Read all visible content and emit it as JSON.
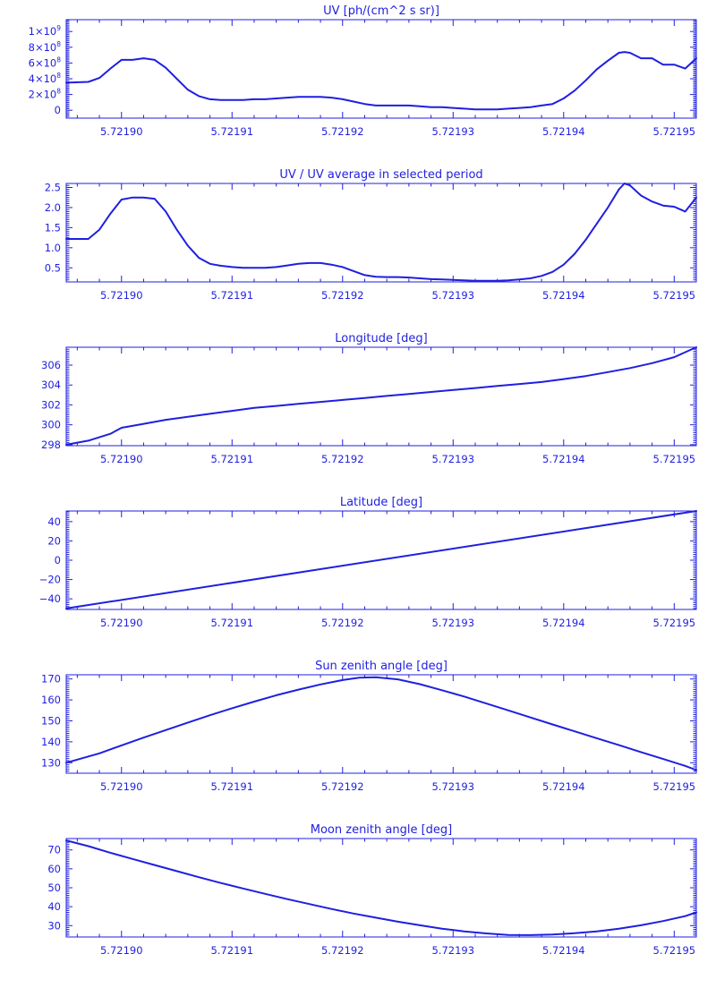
{
  "colors": {
    "ink": "#1f1fe0",
    "background": "#ffffff"
  },
  "chart_data": [
    {
      "type": "line",
      "title": "UV [ph/(cm^2 s sr)]",
      "xlabel": "",
      "ylabel": "",
      "xlim": [
        5.721895,
        5.721952
      ],
      "ylim": [
        -100000000,
        1150000000
      ],
      "xticks": [
        5.7219,
        5.72191,
        5.72192,
        5.72193,
        5.72194,
        5.72195
      ],
      "xtick_labels": [
        "5.72190",
        "5.72191",
        "5.72192",
        "5.72193",
        "5.72194",
        "5.72195"
      ],
      "yticks": [
        0,
        200000000,
        400000000,
        600000000,
        800000000,
        1000000000
      ],
      "ytick_labels": [
        {
          "base": "0",
          "exp": ""
        },
        {
          "base": "2×10",
          "exp": "8"
        },
        {
          "base": "4×10",
          "exp": "8"
        },
        {
          "base": "6×10",
          "exp": "8"
        },
        {
          "base": "8×10",
          "exp": "8"
        },
        {
          "base": "1×10",
          "exp": "9"
        }
      ],
      "grid": false,
      "x": [
        5.721895,
        5.721897,
        5.721898,
        5.721899,
        5.7219,
        5.721901,
        5.721902,
        5.721903,
        5.721904,
        5.721905,
        5.721906,
        5.721907,
        5.721908,
        5.721909,
        5.72191,
        5.721911,
        5.721912,
        5.721913,
        5.721914,
        5.721915,
        5.721916,
        5.721917,
        5.721918,
        5.721919,
        5.72192,
        5.721921,
        5.721922,
        5.721923,
        5.721924,
        5.721925,
        5.721926,
        5.721927,
        5.721928,
        5.721929,
        5.72193,
        5.721931,
        5.721932,
        5.721933,
        5.721934,
        5.721935,
        5.721936,
        5.721937,
        5.721938,
        5.721939,
        5.72194,
        5.721941,
        5.721942,
        5.721943,
        5.721944,
        5.721945,
        5.7219455,
        5.721946,
        5.721947,
        5.721948,
        5.721949,
        5.72195,
        5.721951,
        5.721952
      ],
      "y": [
        350000000,
        360000000,
        410000000,
        530000000,
        640000000,
        640000000,
        660000000,
        640000000,
        540000000,
        400000000,
        260000000,
        180000000,
        140000000,
        130000000,
        130000000,
        130000000,
        140000000,
        140000000,
        150000000,
        160000000,
        170000000,
        170000000,
        170000000,
        160000000,
        140000000,
        110000000,
        80000000,
        60000000,
        60000000,
        60000000,
        60000000,
        50000000,
        40000000,
        40000000,
        30000000,
        20000000,
        10000000,
        10000000,
        10000000,
        20000000,
        30000000,
        40000000,
        60000000,
        80000000,
        150000000,
        250000000,
        380000000,
        520000000,
        630000000,
        730000000,
        740000000,
        730000000,
        660000000,
        660000000,
        580000000,
        580000000,
        530000000,
        660000000
      ]
    },
    {
      "type": "line",
      "title": "UV / UV average in selected period",
      "xlabel": "",
      "ylabel": "",
      "xlim": [
        5.721895,
        5.721952
      ],
      "ylim": [
        0.15,
        2.6
      ],
      "xticks": [
        5.7219,
        5.72191,
        5.72192,
        5.72193,
        5.72194,
        5.72195
      ],
      "xtick_labels": [
        "5.72190",
        "5.72191",
        "5.72192",
        "5.72193",
        "5.72194",
        "5.72195"
      ],
      "yticks": [
        0.5,
        1.0,
        1.5,
        2.0,
        2.5
      ],
      "ytick_labels": [
        "0.5",
        "1.0",
        "1.5",
        "2.0",
        "2.5"
      ],
      "grid": false,
      "x": [
        5.721895,
        5.721897,
        5.721898,
        5.721899,
        5.7219,
        5.721901,
        5.721902,
        5.721903,
        5.721904,
        5.721905,
        5.721906,
        5.721907,
        5.721908,
        5.721909,
        5.72191,
        5.721911,
        5.721912,
        5.721913,
        5.721914,
        5.721915,
        5.721916,
        5.721917,
        5.721918,
        5.721919,
        5.72192,
        5.721921,
        5.721922,
        5.721923,
        5.721924,
        5.721925,
        5.721926,
        5.721927,
        5.721928,
        5.721929,
        5.72193,
        5.721931,
        5.721932,
        5.721933,
        5.721934,
        5.721935,
        5.721936,
        5.721937,
        5.721938,
        5.721939,
        5.72194,
        5.721941,
        5.721942,
        5.721943,
        5.721944,
        5.721945,
        5.7219455,
        5.721946,
        5.721947,
        5.721948,
        5.721949,
        5.72195,
        5.721951,
        5.721952
      ],
      "y": [
        1.22,
        1.22,
        1.45,
        1.85,
        2.2,
        2.25,
        2.25,
        2.22,
        1.9,
        1.45,
        1.05,
        0.75,
        0.6,
        0.55,
        0.52,
        0.5,
        0.5,
        0.5,
        0.52,
        0.56,
        0.6,
        0.62,
        0.62,
        0.58,
        0.52,
        0.42,
        0.32,
        0.28,
        0.27,
        0.27,
        0.26,
        0.24,
        0.22,
        0.21,
        0.2,
        0.19,
        0.18,
        0.18,
        0.18,
        0.19,
        0.21,
        0.24,
        0.3,
        0.4,
        0.58,
        0.85,
        1.2,
        1.6,
        2.0,
        2.45,
        2.6,
        2.55,
        2.3,
        2.15,
        2.05,
        2.02,
        1.9,
        2.25
      ]
    },
    {
      "type": "line",
      "title": "Longitude [deg]",
      "xlabel": "",
      "ylabel": "",
      "xlim": [
        5.721895,
        5.721952
      ],
      "ylim": [
        297.9,
        307.8
      ],
      "xticks": [
        5.7219,
        5.72191,
        5.72192,
        5.72193,
        5.72194,
        5.72195
      ],
      "xtick_labels": [
        "5.72190",
        "5.72191",
        "5.72192",
        "5.72193",
        "5.72194",
        "5.72195"
      ],
      "yticks": [
        298,
        300,
        302,
        304,
        306
      ],
      "ytick_labels": [
        "298",
        "300",
        "302",
        "304",
        "306"
      ],
      "grid": false,
      "x": [
        5.721895,
        5.721897,
        5.721899,
        5.7219,
        5.721902,
        5.721904,
        5.721906,
        5.721908,
        5.72191,
        5.721912,
        5.721914,
        5.721916,
        5.721918,
        5.72192,
        5.721922,
        5.721924,
        5.721926,
        5.721928,
        5.72193,
        5.721932,
        5.721934,
        5.721936,
        5.721938,
        5.72194,
        5.721942,
        5.721944,
        5.721946,
        5.721948,
        5.72195,
        5.721952
      ],
      "y": [
        298.0,
        298.4,
        299.1,
        299.7,
        300.1,
        300.5,
        300.8,
        301.1,
        301.4,
        301.7,
        301.9,
        302.1,
        302.3,
        302.5,
        302.7,
        302.9,
        303.1,
        303.3,
        303.5,
        303.7,
        303.9,
        304.1,
        304.3,
        304.6,
        304.9,
        305.3,
        305.7,
        306.2,
        306.8,
        307.8
      ]
    },
    {
      "type": "line",
      "title": "Latitude [deg]",
      "xlabel": "",
      "ylabel": "",
      "xlim": [
        5.721895,
        5.721952
      ],
      "ylim": [
        -51,
        51
      ],
      "xticks": [
        5.7219,
        5.72191,
        5.72192,
        5.72193,
        5.72194,
        5.72195
      ],
      "xtick_labels": [
        "5.72190",
        "5.72191",
        "5.72192",
        "5.72193",
        "5.72194",
        "5.72195"
      ],
      "yticks": [
        -40,
        -20,
        0,
        20,
        40
      ],
      "ytick_labels": [
        "−40",
        "−20",
        "0",
        "20",
        "40"
      ],
      "grid": false,
      "x": [
        5.721895,
        5.721952
      ],
      "y": [
        -50,
        51
      ]
    },
    {
      "type": "line",
      "title": "Sun zenith angle [deg]",
      "xlabel": "",
      "ylabel": "",
      "xlim": [
        5.721895,
        5.721952
      ],
      "ylim": [
        125,
        172
      ],
      "xticks": [
        5.7219,
        5.72191,
        5.72192,
        5.72193,
        5.72194,
        5.72195
      ],
      "xtick_labels": [
        "5.72190",
        "5.72191",
        "5.72192",
        "5.72193",
        "5.72194",
        "5.72195"
      ],
      "yticks": [
        130,
        140,
        150,
        160,
        170
      ],
      "ytick_labels": [
        "130",
        "140",
        "150",
        "160",
        "170"
      ],
      "grid": false,
      "x": [
        5.721895,
        5.721898,
        5.7219,
        5.721902,
        5.721904,
        5.721906,
        5.721908,
        5.72191,
        5.721912,
        5.721914,
        5.721916,
        5.721918,
        5.72192,
        5.7219215,
        5.721923,
        5.721925,
        5.721927,
        5.721929,
        5.721931,
        5.721933,
        5.721935,
        5.721937,
        5.721939,
        5.721941,
        5.721943,
        5.721945,
        5.721947,
        5.721949,
        5.721951,
        5.721952
      ],
      "y": [
        130,
        134.5,
        138.3,
        142,
        145.6,
        149.2,
        152.7,
        156,
        159.2,
        162.2,
        164.9,
        167.4,
        169.5,
        170.6,
        170.8,
        169.8,
        167.5,
        164.6,
        161.6,
        158.3,
        155,
        151.6,
        148.3,
        145,
        141.7,
        138.4,
        135.1,
        131.8,
        128.5,
        126.5
      ]
    },
    {
      "type": "line",
      "title": "Moon zenith angle [deg]",
      "xlabel": "",
      "ylabel": "",
      "xlim": [
        5.721895,
        5.721952
      ],
      "ylim": [
        24,
        76
      ],
      "xticks": [
        5.7219,
        5.72191,
        5.72192,
        5.72193,
        5.72194,
        5.72195
      ],
      "xtick_labels": [
        "5.72190",
        "5.72191",
        "5.72192",
        "5.72193",
        "5.72194",
        "5.72195"
      ],
      "yticks": [
        30,
        40,
        50,
        60,
        70
      ],
      "ytick_labels": [
        "30",
        "40",
        "50",
        "60",
        "70"
      ],
      "grid": false,
      "x": [
        5.721895,
        5.721897,
        5.721899,
        5.721901,
        5.721903,
        5.721905,
        5.721907,
        5.721909,
        5.721911,
        5.721913,
        5.721915,
        5.721917,
        5.721919,
        5.721921,
        5.721923,
        5.721925,
        5.721927,
        5.721929,
        5.721931,
        5.721933,
        5.721935,
        5.721937,
        5.721939,
        5.721941,
        5.721943,
        5.721945,
        5.721947,
        5.721949,
        5.721951,
        5.721952
      ],
      "y": [
        75,
        72,
        68.5,
        65.2,
        62,
        58.8,
        55.6,
        52.5,
        49.6,
        46.8,
        44,
        41.4,
        38.8,
        36.4,
        34.2,
        32.1,
        30.2,
        28.4,
        27,
        25.9,
        25.1,
        25,
        25.3,
        26,
        27,
        28.4,
        30.2,
        32.4,
        35,
        37
      ]
    }
  ]
}
